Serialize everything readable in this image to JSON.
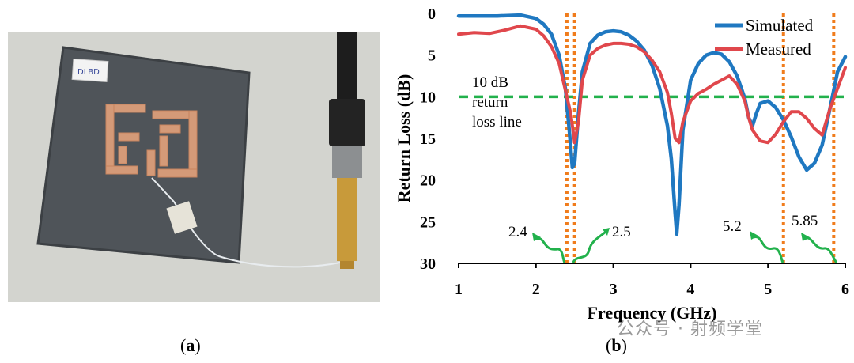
{
  "captions": {
    "a": "a",
    "b": "b"
  },
  "watermark": "公众号 · 射频学堂",
  "photo": {
    "label": "DLBD"
  },
  "colors": {
    "simulated": "#1f78c1",
    "measured": "#e0474c",
    "threshold": "#22b14c",
    "markers": "#f07c1c",
    "arrows": "#22b14c"
  },
  "chart_data": {
    "type": "line",
    "xlabel": "Frequency (GHz)",
    "ylabel": "Return Loss (dB)",
    "xlim": [
      1,
      6
    ],
    "ylim": [
      0,
      30
    ],
    "y_inverted": true,
    "x_ticks": [
      "1",
      "2",
      "3",
      "4",
      "5",
      "6"
    ],
    "y_ticks": [
      "0",
      "5",
      "10",
      "15",
      "20",
      "25",
      "30"
    ],
    "legend_position": "top-right",
    "series": [
      {
        "name": "Simulated",
        "color": "#1f78c1",
        "x": [
          1.0,
          1.5,
          1.8,
          2.0,
          2.1,
          2.2,
          2.3,
          2.38,
          2.43,
          2.47,
          2.5,
          2.55,
          2.6,
          2.7,
          2.8,
          2.9,
          3.0,
          3.1,
          3.2,
          3.3,
          3.4,
          3.5,
          3.6,
          3.7,
          3.75,
          3.8,
          3.82,
          3.85,
          3.9,
          4.0,
          4.1,
          4.2,
          4.3,
          4.4,
          4.5,
          4.6,
          4.7,
          4.75,
          4.8,
          4.85,
          4.9,
          5.0,
          5.1,
          5.2,
          5.3,
          5.4,
          5.5,
          5.6,
          5.7,
          5.8,
          5.9,
          6.0
        ],
        "y": [
          0.3,
          0.3,
          0.2,
          0.6,
          1.3,
          2.5,
          5.0,
          9.0,
          14.0,
          18.5,
          18.0,
          12.0,
          7.0,
          3.6,
          2.6,
          2.2,
          2.1,
          2.2,
          2.6,
          3.3,
          4.4,
          6.2,
          9.0,
          13.5,
          17.5,
          24.0,
          26.5,
          23.0,
          14.0,
          8.0,
          6.0,
          5.0,
          4.7,
          4.9,
          5.8,
          7.5,
          10.2,
          12.5,
          13.5,
          12.0,
          10.8,
          10.5,
          11.3,
          12.8,
          14.8,
          17.2,
          18.8,
          18.0,
          15.8,
          11.5,
          7.0,
          5.2
        ]
      },
      {
        "name": "Measured",
        "color": "#e0474c",
        "x": [
          1.0,
          1.2,
          1.4,
          1.6,
          1.8,
          2.0,
          2.1,
          2.2,
          2.3,
          2.35,
          2.4,
          2.45,
          2.5,
          2.55,
          2.6,
          2.7,
          2.8,
          2.9,
          3.0,
          3.1,
          3.2,
          3.3,
          3.4,
          3.5,
          3.6,
          3.7,
          3.75,
          3.8,
          3.85,
          3.9,
          4.0,
          4.1,
          4.2,
          4.3,
          4.4,
          4.5,
          4.6,
          4.7,
          4.75,
          4.8,
          4.9,
          5.0,
          5.1,
          5.2,
          5.3,
          5.4,
          5.5,
          5.6,
          5.7,
          5.8,
          5.9,
          6.0
        ],
        "y": [
          2.5,
          2.3,
          2.4,
          2.0,
          1.5,
          1.9,
          2.7,
          4.0,
          6.0,
          8.0,
          10.0,
          12.0,
          15.5,
          13.0,
          8.0,
          5.0,
          4.2,
          3.8,
          3.6,
          3.6,
          3.7,
          4.0,
          4.6,
          5.6,
          7.0,
          9.5,
          12.0,
          15.0,
          15.5,
          13.0,
          10.5,
          9.6,
          9.1,
          8.5,
          8.0,
          7.5,
          8.5,
          10.5,
          12.5,
          14.0,
          15.3,
          15.5,
          14.5,
          13.0,
          11.8,
          11.8,
          12.6,
          13.8,
          14.6,
          11.5,
          9.0,
          6.5
        ]
      }
    ],
    "threshold_line": {
      "y": 10,
      "label_lines": [
        "10 dB",
        "return",
        "loss line"
      ]
    },
    "markers": {
      "x": [
        2.4,
        2.5,
        5.2,
        5.85
      ],
      "labels": [
        "2.4",
        "2.5",
        "5.2",
        "5.85"
      ]
    }
  }
}
